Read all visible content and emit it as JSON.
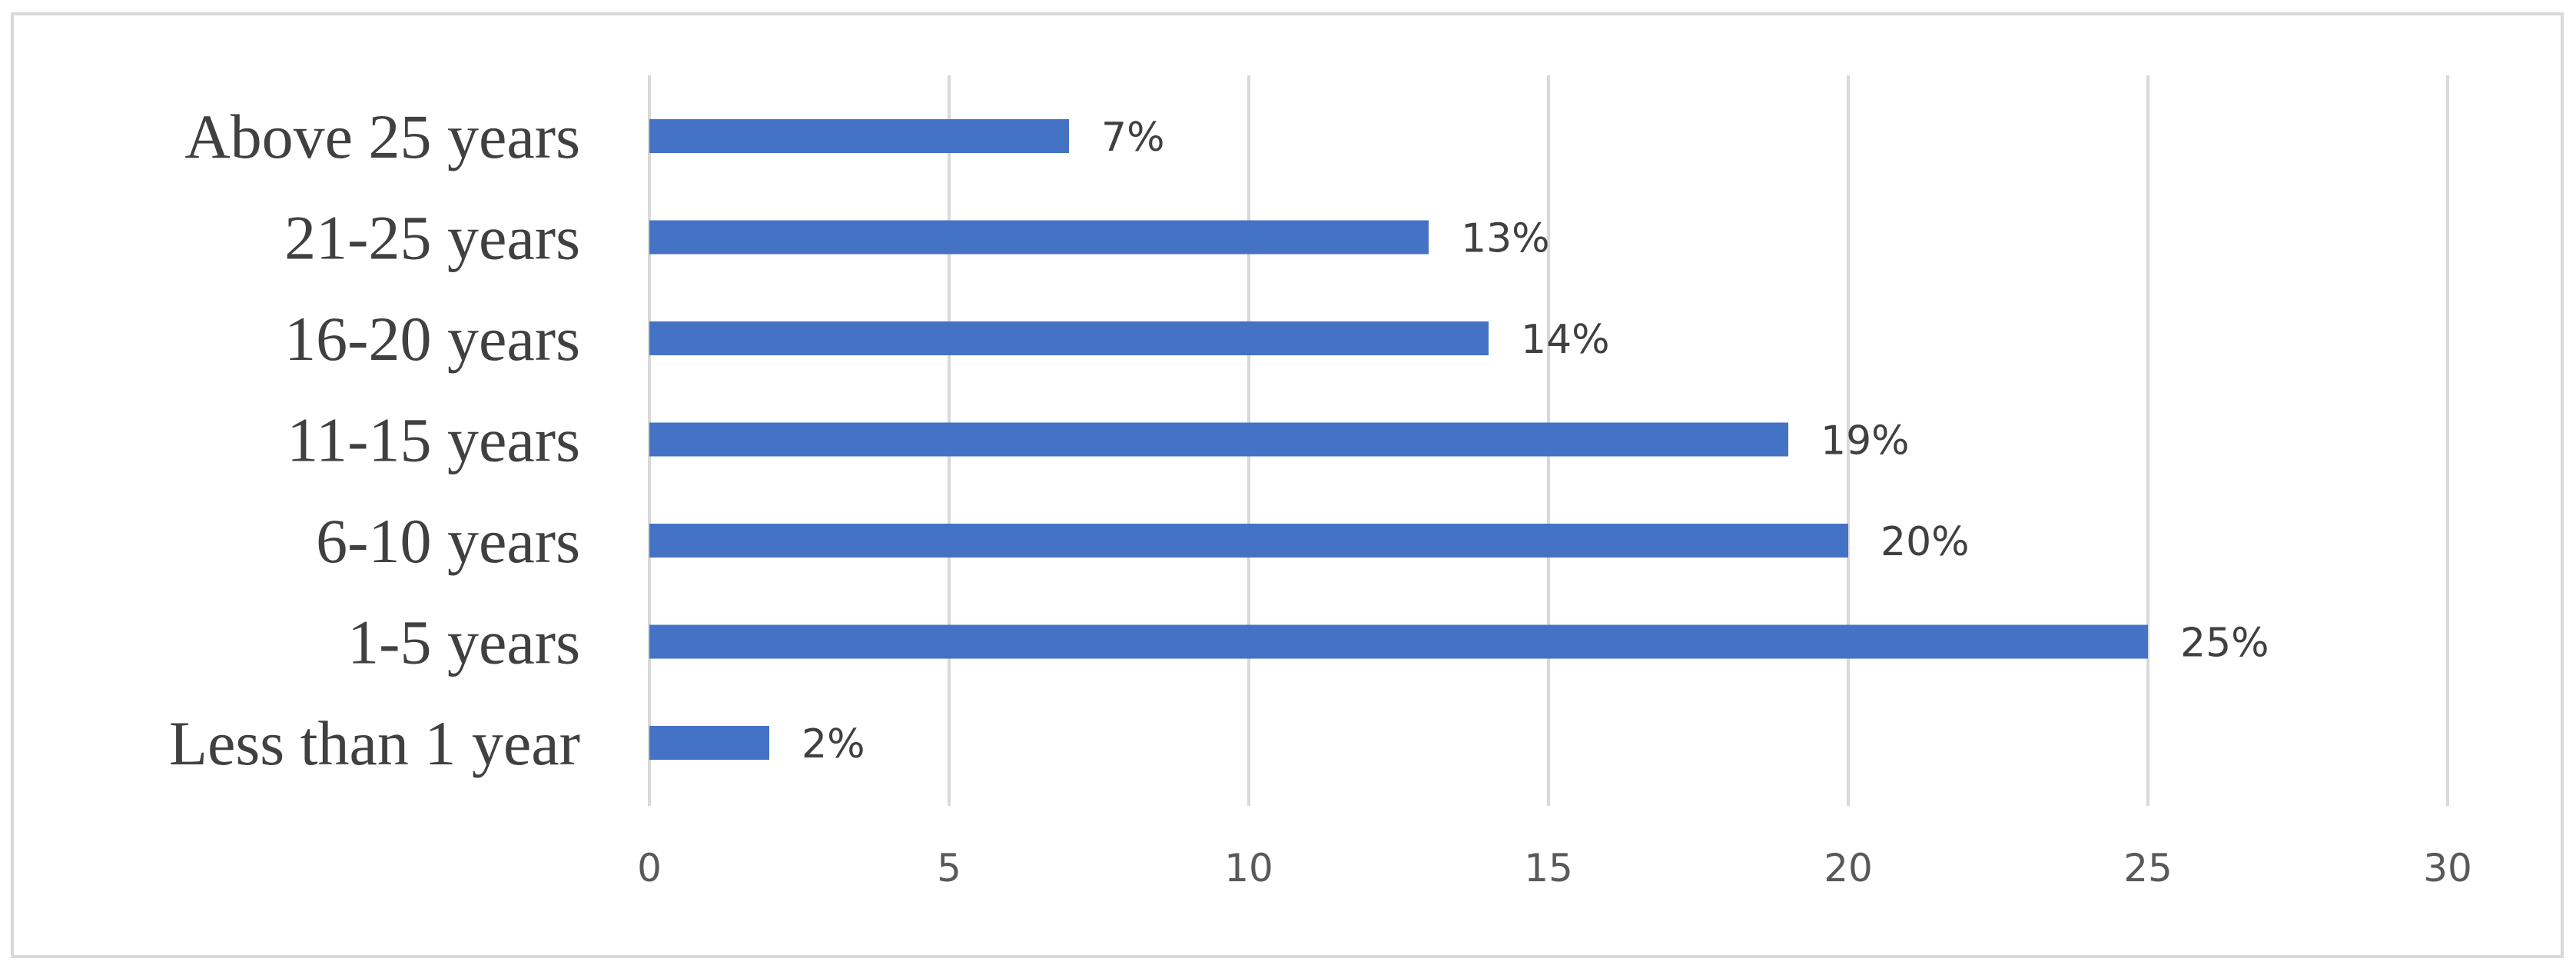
{
  "chart_data": {
    "type": "bar",
    "orientation": "horizontal",
    "categories": [
      "Less than 1 year",
      "1-5 years",
      "6-10 years",
      "11-15 years",
      "16-20 years",
      "21-25 years",
      "Above 25 years"
    ],
    "values": [
      2,
      25,
      20,
      19,
      14,
      13,
      7
    ],
    "data_labels": [
      "2%",
      "25%",
      "20%",
      "19%",
      "14%",
      "13%",
      "7%"
    ],
    "xlim": [
      0,
      30
    ],
    "xticks": [
      "0",
      "5",
      "10",
      "15",
      "20",
      "25",
      "30"
    ],
    "grid": true,
    "legend": "none",
    "title": "",
    "xlabel": "",
    "ylabel": "",
    "bar_color": "#4472c4"
  }
}
